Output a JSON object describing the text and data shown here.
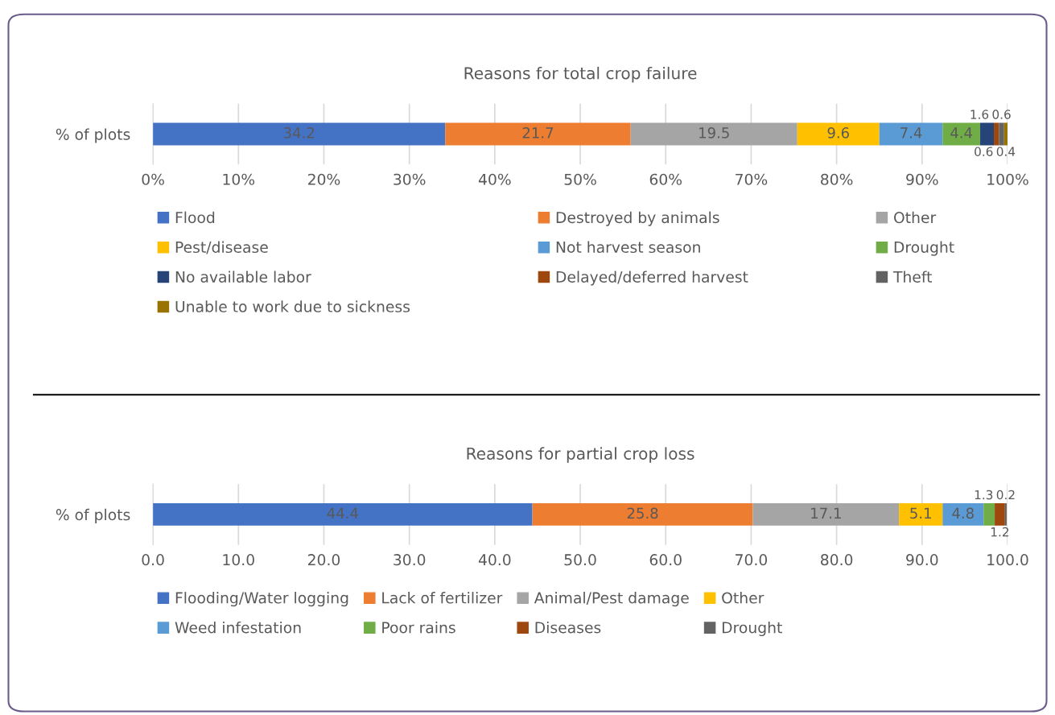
{
  "chart_data": [
    {
      "type": "bar",
      "orientation": "horizontal",
      "stacked": true,
      "title": "Reasons for total crop failure",
      "categories": [
        "% of plots"
      ],
      "data_labels": true,
      "grid": "x",
      "legend": "bottom",
      "xlim": [
        0,
        100
      ],
      "xticks": [
        {
          "value": 0,
          "label": "0%"
        },
        {
          "value": 10,
          "label": "10%"
        },
        {
          "value": 20,
          "label": "20%"
        },
        {
          "value": 30,
          "label": "30%"
        },
        {
          "value": 40,
          "label": "40%"
        },
        {
          "value": 50,
          "label": "50%"
        },
        {
          "value": 60,
          "label": "60%"
        },
        {
          "value": 70,
          "label": "70%"
        },
        {
          "value": 80,
          "label": "80%"
        },
        {
          "value": 90,
          "label": "90%"
        },
        {
          "value": 100,
          "label": "100%"
        }
      ],
      "series": [
        {
          "name": "Flood",
          "color": "#4472c4",
          "values": [
            34.2
          ]
        },
        {
          "name": "Destroyed by animals",
          "color": "#ed7d31",
          "values": [
            21.7
          ]
        },
        {
          "name": "Other",
          "color": "#a5a5a5",
          "values": [
            19.5
          ]
        },
        {
          "name": "Pest/disease",
          "color": "#ffc000",
          "values": [
            9.6
          ]
        },
        {
          "name": "Not harvest season",
          "color": "#5b9bd5",
          "values": [
            7.4
          ]
        },
        {
          "name": "Drought",
          "color": "#70ad47",
          "values": [
            4.4
          ]
        },
        {
          "name": "No available labor",
          "color": "#264478",
          "values": [
            1.6
          ]
        },
        {
          "name": "Delayed/deferred harvest",
          "color": "#9e480e",
          "values": [
            0.6
          ]
        },
        {
          "name": "Theft",
          "color": "#636363",
          "values": [
            0.6
          ]
        },
        {
          "name": "Unable to work due to sickness",
          "color": "#997300",
          "values": [
            0.4
          ]
        }
      ]
    },
    {
      "type": "bar",
      "orientation": "horizontal",
      "stacked": true,
      "title": "Reasons for partial crop loss",
      "categories": [
        "% of plots"
      ],
      "data_labels": true,
      "grid": "x",
      "legend": "bottom",
      "xlim": [
        0,
        100
      ],
      "xticks": [
        {
          "value": 0,
          "label": "0.0"
        },
        {
          "value": 10,
          "label": "10.0"
        },
        {
          "value": 20,
          "label": "20.0"
        },
        {
          "value": 30,
          "label": "30.0"
        },
        {
          "value": 40,
          "label": "40.0"
        },
        {
          "value": 50,
          "label": "50.0"
        },
        {
          "value": 60,
          "label": "60.0"
        },
        {
          "value": 70,
          "label": "70.0"
        },
        {
          "value": 80,
          "label": "80.0"
        },
        {
          "value": 90,
          "label": "90.0"
        },
        {
          "value": 100,
          "label": "100.0"
        }
      ],
      "series": [
        {
          "name": "Flooding/Water logging",
          "color": "#4472c4",
          "values": [
            44.4
          ]
        },
        {
          "name": "Lack of fertilizer",
          "color": "#ed7d31",
          "values": [
            25.8
          ]
        },
        {
          "name": "Animal/Pest damage",
          "color": "#a5a5a5",
          "values": [
            17.1
          ]
        },
        {
          "name": "Other",
          "color": "#ffc000",
          "values": [
            5.1
          ]
        },
        {
          "name": "Weed infestation",
          "color": "#5b9bd5",
          "values": [
            4.8
          ]
        },
        {
          "name": "Poor rains",
          "color": "#70ad47",
          "values": [
            1.3
          ]
        },
        {
          "name": "Diseases",
          "color": "#9e480e",
          "values": [
            1.2
          ]
        },
        {
          "name": "Drought",
          "color": "#636363",
          "values": [
            0.2
          ]
        }
      ]
    }
  ]
}
